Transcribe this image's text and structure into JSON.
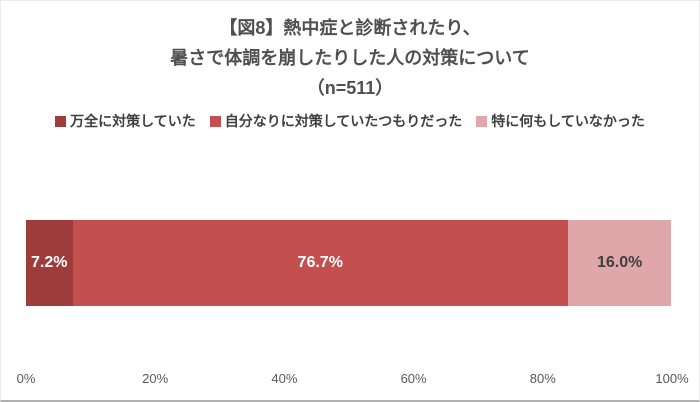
{
  "title": {
    "line1": "【図8】熱中症と診断されたり、",
    "line2": "暑さで体調を崩したりした人の対策について",
    "line3": "（n=511）"
  },
  "chart_data": {
    "type": "bar",
    "variant": "horizontal-stacked",
    "title": "【図8】熱中症と診断されたり、暑さで体調を崩したりした人の対策について（n=511）",
    "sample_size_label": "（n=511）",
    "legend_position": "top",
    "grid": false,
    "series": [
      {
        "name": "万全に対策していた",
        "value": 7.2,
        "label": "7.2%",
        "color": "#9e3c3c",
        "label_color": "#ffffff"
      },
      {
        "name": "自分なりに対策していたつもりだった",
        "value": 76.7,
        "label": "76.7%",
        "color": "#c34f4f",
        "label_color": "#ffffff"
      },
      {
        "name": "特に何もしていなかった",
        "value": 16.0,
        "label": "16.0%",
        "color": "#dfa7a9",
        "label_color": "#3f3f3f"
      }
    ],
    "x_axis": {
      "min": 0,
      "max": 100,
      "ticks": [
        "0%",
        "20%",
        "40%",
        "60%",
        "80%",
        "100%"
      ]
    }
  }
}
